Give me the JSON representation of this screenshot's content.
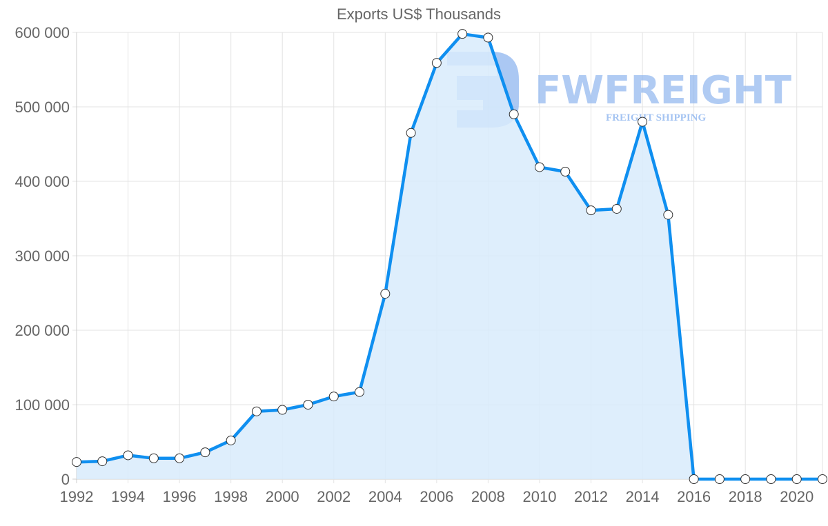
{
  "chart_data": {
    "type": "area",
    "title": "Exports US$ Thousands",
    "xlabel": "",
    "ylabel": "",
    "x": [
      1992,
      1993,
      1994,
      1995,
      1996,
      1997,
      1998,
      1999,
      2000,
      2001,
      2002,
      2003,
      2004,
      2005,
      2006,
      2007,
      2008,
      2009,
      2010,
      2011,
      2012,
      2013,
      2014,
      2015,
      2016,
      2017,
      2018,
      2019,
      2020,
      2021
    ],
    "series": [
      {
        "name": "Exports US$ Thousands",
        "values": [
          23000,
          24000,
          32000,
          28000,
          28000,
          36000,
          52000,
          91000,
          93000,
          100000,
          111000,
          117000,
          249000,
          465000,
          559000,
          598000,
          593000,
          490000,
          419000,
          413000,
          361000,
          363000,
          480000,
          355000,
          0,
          0,
          0,
          0,
          0,
          0
        ]
      }
    ],
    "x_tick_labels": [
      "1992",
      "1994",
      "1996",
      "1998",
      "2000",
      "2002",
      "2004",
      "2006",
      "2008",
      "2010",
      "2012",
      "2014",
      "2016",
      "2018",
      "2020"
    ],
    "y_tick_labels": [
      "0",
      "100 000",
      "200 000",
      "300 000",
      "400 000",
      "500 000",
      "600 000"
    ],
    "y_ticks": [
      0,
      100000,
      200000,
      300000,
      400000,
      500000,
      600000
    ],
    "ylim": [
      0,
      600000
    ],
    "xlim": [
      1992,
      2021
    ],
    "grid": true,
    "legend": "none",
    "colors": {
      "line": "#0f8ff0",
      "fill": "#d8ebfc",
      "marker_fill": "#ffffff",
      "marker_stroke": "#333333",
      "grid": "#e3e3e3",
      "text": "#666666"
    }
  },
  "watermark": {
    "brand": "FWFREIGHT",
    "tagline": "FREIGHT SHIPPING",
    "color": "#8fb6ef"
  }
}
